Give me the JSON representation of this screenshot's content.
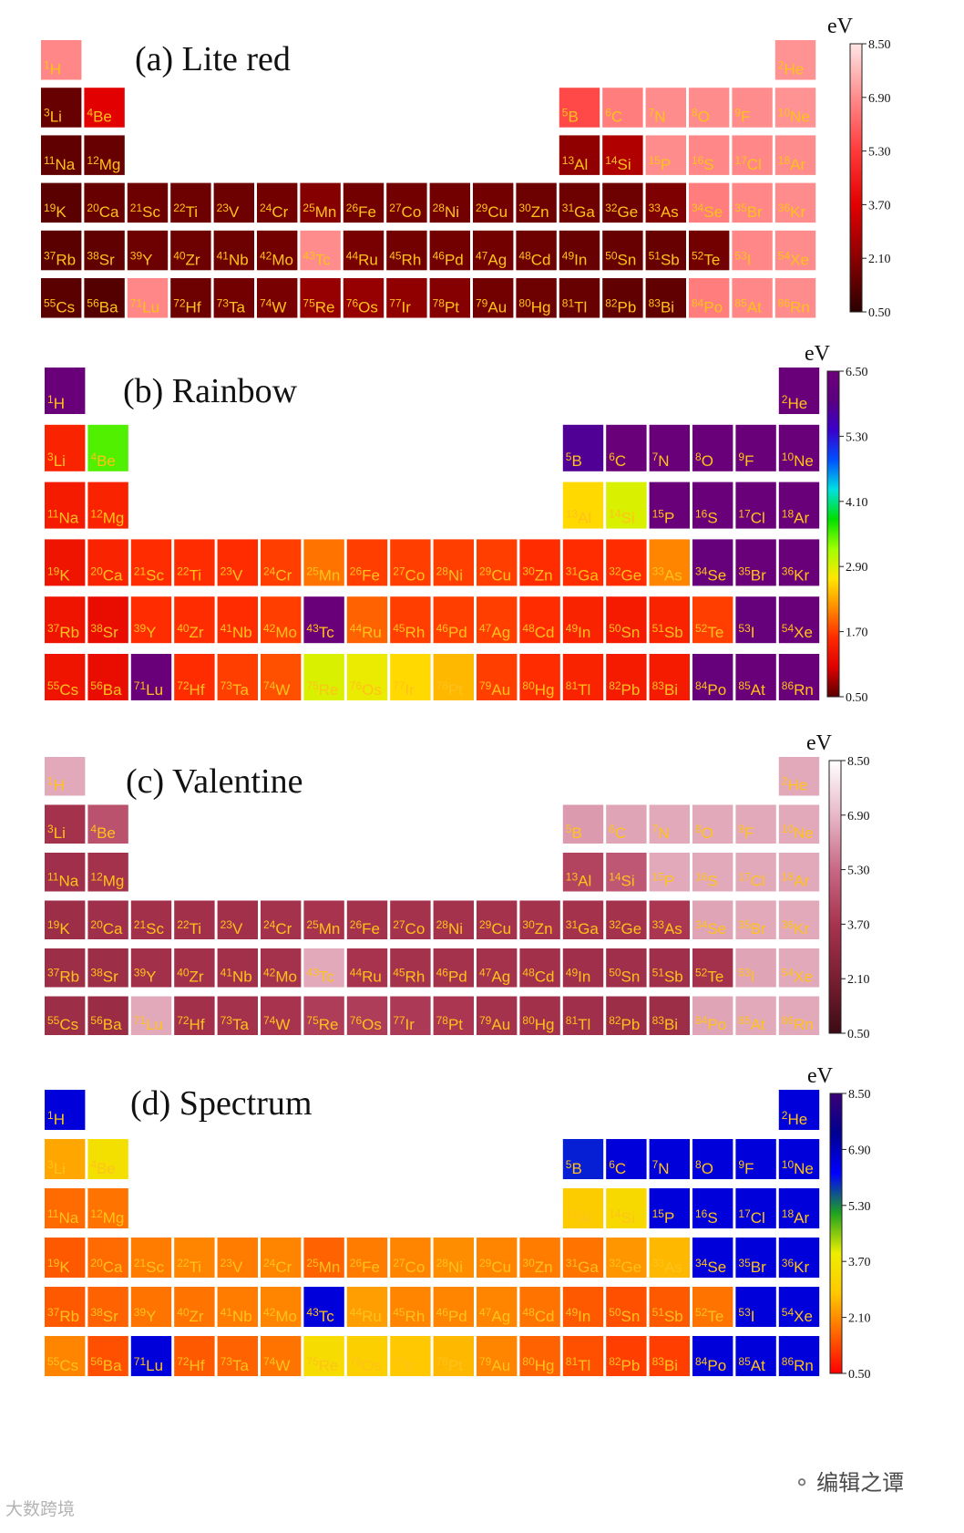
{
  "chart_data": {
    "type": "heatmap",
    "layout": "periodic-table",
    "unit": "eV",
    "elements": [
      {
        "z": 1,
        "sym": "H",
        "g": 1,
        "p": 1
      },
      {
        "z": 2,
        "sym": "He",
        "g": 18,
        "p": 1
      },
      {
        "z": 3,
        "sym": "Li",
        "g": 1,
        "p": 2
      },
      {
        "z": 4,
        "sym": "Be",
        "g": 2,
        "p": 2
      },
      {
        "z": 5,
        "sym": "B",
        "g": 13,
        "p": 2
      },
      {
        "z": 6,
        "sym": "C",
        "g": 14,
        "p": 2
      },
      {
        "z": 7,
        "sym": "N",
        "g": 15,
        "p": 2
      },
      {
        "z": 8,
        "sym": "O",
        "g": 16,
        "p": 2
      },
      {
        "z": 9,
        "sym": "F",
        "g": 17,
        "p": 2
      },
      {
        "z": 10,
        "sym": "Ne",
        "g": 18,
        "p": 2
      },
      {
        "z": 11,
        "sym": "Na",
        "g": 1,
        "p": 3
      },
      {
        "z": 12,
        "sym": "Mg",
        "g": 2,
        "p": 3
      },
      {
        "z": 13,
        "sym": "Al",
        "g": 13,
        "p": 3
      },
      {
        "z": 14,
        "sym": "Si",
        "g": 14,
        "p": 3
      },
      {
        "z": 15,
        "sym": "P",
        "g": 15,
        "p": 3
      },
      {
        "z": 16,
        "sym": "S",
        "g": 16,
        "p": 3
      },
      {
        "z": 17,
        "sym": "Cl",
        "g": 17,
        "p": 3
      },
      {
        "z": 18,
        "sym": "Ar",
        "g": 18,
        "p": 3
      },
      {
        "z": 19,
        "sym": "K",
        "g": 1,
        "p": 4
      },
      {
        "z": 20,
        "sym": "Ca",
        "g": 2,
        "p": 4
      },
      {
        "z": 21,
        "sym": "Sc",
        "g": 3,
        "p": 4
      },
      {
        "z": 22,
        "sym": "Ti",
        "g": 4,
        "p": 4
      },
      {
        "z": 23,
        "sym": "V",
        "g": 5,
        "p": 4
      },
      {
        "z": 24,
        "sym": "Cr",
        "g": 6,
        "p": 4
      },
      {
        "z": 25,
        "sym": "Mn",
        "g": 7,
        "p": 4
      },
      {
        "z": 26,
        "sym": "Fe",
        "g": 8,
        "p": 4
      },
      {
        "z": 27,
        "sym": "Co",
        "g": 9,
        "p": 4
      },
      {
        "z": 28,
        "sym": "Ni",
        "g": 10,
        "p": 4
      },
      {
        "z": 29,
        "sym": "Cu",
        "g": 11,
        "p": 4
      },
      {
        "z": 30,
        "sym": "Zn",
        "g": 12,
        "p": 4
      },
      {
        "z": 31,
        "sym": "Ga",
        "g": 13,
        "p": 4
      },
      {
        "z": 32,
        "sym": "Ge",
        "g": 14,
        "p": 4
      },
      {
        "z": 33,
        "sym": "As",
        "g": 15,
        "p": 4
      },
      {
        "z": 34,
        "sym": "Se",
        "g": 16,
        "p": 4
      },
      {
        "z": 35,
        "sym": "Br",
        "g": 17,
        "p": 4
      },
      {
        "z": 36,
        "sym": "Kr",
        "g": 18,
        "p": 4
      },
      {
        "z": 37,
        "sym": "Rb",
        "g": 1,
        "p": 5
      },
      {
        "z": 38,
        "sym": "Sr",
        "g": 2,
        "p": 5
      },
      {
        "z": 39,
        "sym": "Y",
        "g": 3,
        "p": 5
      },
      {
        "z": 40,
        "sym": "Zr",
        "g": 4,
        "p": 5
      },
      {
        "z": 41,
        "sym": "Nb",
        "g": 5,
        "p": 5
      },
      {
        "z": 42,
        "sym": "Mo",
        "g": 6,
        "p": 5
      },
      {
        "z": 43,
        "sym": "Tc",
        "g": 7,
        "p": 5
      },
      {
        "z": 44,
        "sym": "Ru",
        "g": 8,
        "p": 5
      },
      {
        "z": 45,
        "sym": "Rh",
        "g": 9,
        "p": 5
      },
      {
        "z": 46,
        "sym": "Pd",
        "g": 10,
        "p": 5
      },
      {
        "z": 47,
        "sym": "Ag",
        "g": 11,
        "p": 5
      },
      {
        "z": 48,
        "sym": "Cd",
        "g": 12,
        "p": 5
      },
      {
        "z": 49,
        "sym": "In",
        "g": 13,
        "p": 5
      },
      {
        "z": 50,
        "sym": "Sn",
        "g": 14,
        "p": 5
      },
      {
        "z": 51,
        "sym": "Sb",
        "g": 15,
        "p": 5
      },
      {
        "z": 52,
        "sym": "Te",
        "g": 16,
        "p": 5
      },
      {
        "z": 53,
        "sym": "I",
        "g": 17,
        "p": 5
      },
      {
        "z": 54,
        "sym": "Xe",
        "g": 18,
        "p": 5
      },
      {
        "z": 55,
        "sym": "Cs",
        "g": 1,
        "p": 6
      },
      {
        "z": 56,
        "sym": "Ba",
        "g": 2,
        "p": 6
      },
      {
        "z": 71,
        "sym": "Lu",
        "g": 3,
        "p": 6
      },
      {
        "z": 72,
        "sym": "Hf",
        "g": 4,
        "p": 6
      },
      {
        "z": 73,
        "sym": "Ta",
        "g": 5,
        "p": 6
      },
      {
        "z": 74,
        "sym": "W",
        "g": 6,
        "p": 6
      },
      {
        "z": 75,
        "sym": "Re",
        "g": 7,
        "p": 6
      },
      {
        "z": 76,
        "sym": "Os",
        "g": 8,
        "p": 6
      },
      {
        "z": 77,
        "sym": "Ir",
        "g": 9,
        "p": 6
      },
      {
        "z": 78,
        "sym": "Pt",
        "g": 10,
        "p": 6
      },
      {
        "z": 79,
        "sym": "Au",
        "g": 11,
        "p": 6
      },
      {
        "z": 80,
        "sym": "Hg",
        "g": 12,
        "p": 6
      },
      {
        "z": 81,
        "sym": "Tl",
        "g": 13,
        "p": 6
      },
      {
        "z": 82,
        "sym": "Pb",
        "g": 14,
        "p": 6
      },
      {
        "z": 83,
        "sym": "Bi",
        "g": 15,
        "p": 6
      },
      {
        "z": 84,
        "sym": "Po",
        "g": 16,
        "p": 6
      },
      {
        "z": 85,
        "sym": "At",
        "g": 17,
        "p": 6
      },
      {
        "z": 86,
        "sym": "Rn",
        "g": 18,
        "p": 6
      }
    ],
    "panels": [
      {
        "title": "(a) Lite red",
        "colormap": "lite-red",
        "colorbar": {
          "label": "eV",
          "min": 0.5,
          "max": 8.5,
          "ticks": [
            "8.50",
            "6.90",
            "5.30",
            "3.70",
            "2.10",
            "0.50"
          ]
        },
        "values": {
          "H": 6.8,
          "He": 7.0,
          "Li": 1.5,
          "Be": 3.7,
          "B": 5.6,
          "C": 6.6,
          "N": 6.9,
          "O": 6.9,
          "F": 6.9,
          "Ne": 7.0,
          "Na": 1.4,
          "Mg": 1.5,
          "Al": 2.2,
          "Si": 2.8,
          "P": 6.9,
          "S": 6.8,
          "Cl": 6.8,
          "Ar": 6.9,
          "K": 1.3,
          "Ca": 1.5,
          "Sc": 1.6,
          "Ti": 1.6,
          "V": 1.6,
          "Cr": 1.7,
          "Mn": 2.0,
          "Fe": 1.7,
          "Co": 1.7,
          "Ni": 1.7,
          "Cu": 1.7,
          "Zn": 1.6,
          "Ga": 1.6,
          "Ge": 1.6,
          "As": 1.9,
          "Se": 6.6,
          "Br": 6.8,
          "Kr": 6.9,
          "Rb": 1.3,
          "Sr": 1.4,
          "Y": 1.6,
          "Zr": 1.6,
          "Nb": 1.6,
          "Mo": 1.7,
          "Tc": 6.9,
          "Ru": 1.8,
          "Rh": 1.7,
          "Pd": 1.7,
          "Ag": 1.7,
          "Cd": 1.6,
          "In": 1.5,
          "Sn": 1.5,
          "Sb": 1.5,
          "Te": 1.7,
          "I": 6.8,
          "Xe": 6.9,
          "Cs": 1.3,
          "Ba": 1.2,
          "Lu": 6.8,
          "Hf": 1.6,
          "Ta": 1.7,
          "W": 1.8,
          "Re": 2.3,
          "Os": 2.3,
          "Ir": 2.2,
          "Pt": 2.0,
          "Au": 1.7,
          "Hg": 1.6,
          "Tl": 1.5,
          "Pb": 1.4,
          "Bi": 1.4,
          "Po": 6.6,
          "At": 6.8,
          "Rn": 6.9
        }
      },
      {
        "title": "(b) Rainbow",
        "colormap": "rainbow",
        "colorbar": {
          "label": "eV",
          "min": 0.5,
          "max": 6.5,
          "ticks": [
            "6.50",
            "5.30",
            "4.10",
            "2.90",
            "1.70",
            "0.50"
          ]
        },
        "values": {
          "H": 6.4,
          "He": 6.4,
          "Li": 1.5,
          "Be": 3.5,
          "B": 5.8,
          "C": 6.4,
          "N": 6.4,
          "O": 6.4,
          "F": 6.4,
          "Ne": 6.4,
          "Na": 1.4,
          "Mg": 1.5,
          "Al": 2.6,
          "Si": 2.9,
          "P": 6.4,
          "S": 6.4,
          "Cl": 6.4,
          "Ar": 6.4,
          "K": 1.3,
          "Ca": 1.5,
          "Sc": 1.6,
          "Ti": 1.6,
          "V": 1.6,
          "Cr": 1.7,
          "Mn": 2.0,
          "Fe": 1.7,
          "Co": 1.7,
          "Ni": 1.7,
          "Cu": 1.7,
          "Zn": 1.6,
          "Ga": 1.6,
          "Ge": 1.6,
          "As": 2.1,
          "Se": 6.3,
          "Br": 6.4,
          "Kr": 6.4,
          "Rb": 1.3,
          "Sr": 1.2,
          "Y": 1.6,
          "Zr": 1.6,
          "Nb": 1.6,
          "Mo": 1.7,
          "Tc": 6.4,
          "Ru": 1.9,
          "Rh": 1.7,
          "Pd": 1.7,
          "Ag": 1.7,
          "Cd": 1.6,
          "In": 1.5,
          "Sn": 1.4,
          "Sb": 1.5,
          "Te": 1.7,
          "I": 6.3,
          "Xe": 6.4,
          "Cs": 1.3,
          "Ba": 1.2,
          "Lu": 6.4,
          "Hf": 1.6,
          "Ta": 1.7,
          "W": 1.8,
          "Re": 2.9,
          "Os": 2.8,
          "Ir": 2.6,
          "Pt": 2.4,
          "Au": 1.7,
          "Hg": 1.6,
          "Tl": 1.5,
          "Pb": 1.4,
          "Bi": 1.4,
          "Po": 6.3,
          "At": 6.4,
          "Rn": 6.4
        }
      },
      {
        "title": "(c) Valentine",
        "colormap": "valentine",
        "colorbar": {
          "label": "eV",
          "min": 0.5,
          "max": 8.5,
          "ticks": [
            "8.50",
            "6.90",
            "5.30",
            "3.70",
            "2.10",
            "0.50"
          ]
        },
        "values": {
          "H": 6.6,
          "He": 6.6,
          "Li": 3.6,
          "Be": 4.6,
          "B": 6.3,
          "C": 6.5,
          "N": 6.6,
          "O": 6.6,
          "F": 6.6,
          "Ne": 6.6,
          "Na": 3.4,
          "Mg": 3.6,
          "Al": 4.2,
          "Si": 4.8,
          "P": 6.6,
          "S": 6.6,
          "Cl": 6.6,
          "Ar": 6.6,
          "K": 3.3,
          "Ca": 3.4,
          "Sc": 3.5,
          "Ti": 3.5,
          "V": 3.5,
          "Cr": 3.6,
          "Mn": 3.7,
          "Fe": 3.6,
          "Co": 3.6,
          "Ni": 3.6,
          "Cu": 3.6,
          "Zn": 3.6,
          "Ga": 3.6,
          "Ge": 3.6,
          "As": 3.8,
          "Se": 6.5,
          "Br": 6.6,
          "Kr": 6.6,
          "Rb": 3.3,
          "Sr": 3.3,
          "Y": 3.5,
          "Zr": 3.5,
          "Nb": 3.5,
          "Mo": 3.6,
          "Tc": 6.6,
          "Ru": 3.7,
          "Rh": 3.6,
          "Pd": 3.6,
          "Ag": 3.6,
          "Cd": 3.5,
          "In": 3.4,
          "Sn": 3.4,
          "Sb": 3.4,
          "Te": 3.6,
          "I": 6.5,
          "Xe": 6.6,
          "Cs": 3.3,
          "Ba": 3.2,
          "Lu": 6.6,
          "Hf": 3.5,
          "Ta": 3.6,
          "W": 3.7,
          "Re": 4.0,
          "Os": 4.0,
          "Ir": 3.9,
          "Pt": 3.8,
          "Au": 3.6,
          "Hg": 3.5,
          "Tl": 3.4,
          "Pb": 3.3,
          "Bi": 3.3,
          "Po": 6.5,
          "At": 6.6,
          "Rn": 6.6
        }
      },
      {
        "title": "(d) Spectrum",
        "colormap": "spectrum",
        "colorbar": {
          "label": "eV",
          "min": 0.5,
          "max": 8.5,
          "ticks": [
            "8.50",
            "6.90",
            "5.30",
            "3.70",
            "2.10",
            "0.50"
          ]
        },
        "values": {
          "H": 6.6,
          "He": 6.6,
          "Li": 2.4,
          "Be": 3.5,
          "B": 6.0,
          "C": 6.6,
          "N": 6.6,
          "O": 6.6,
          "F": 6.6,
          "Ne": 6.6,
          "Na": 1.7,
          "Mg": 1.8,
          "Al": 2.9,
          "Si": 3.3,
          "P": 6.6,
          "S": 6.6,
          "Cl": 6.6,
          "Ar": 6.6,
          "K": 1.5,
          "Ca": 1.7,
          "Sc": 1.9,
          "Ti": 2.0,
          "V": 1.9,
          "Cr": 2.0,
          "Mn": 1.6,
          "Fe": 1.9,
          "Co": 2.0,
          "Ni": 2.1,
          "Cu": 2.0,
          "Zn": 1.9,
          "Ga": 1.8,
          "Ge": 2.2,
          "As": 2.6,
          "Se": 6.6,
          "Br": 6.6,
          "Kr": 6.6,
          "Rb": 1.5,
          "Sr": 1.6,
          "Y": 1.8,
          "Zr": 1.8,
          "Nb": 1.9,
          "Mo": 2.0,
          "Tc": 6.6,
          "Ru": 2.3,
          "Rh": 2.0,
          "Pd": 2.0,
          "Ag": 2.0,
          "Cd": 1.8,
          "In": 1.5,
          "Sn": 1.4,
          "Sb": 1.5,
          "Te": 1.8,
          "I": 6.6,
          "Xe": 6.6,
          "Cs": 2.0,
          "Ba": 1.4,
          "Lu": 6.6,
          "Hf": 1.5,
          "Ta": 1.6,
          "W": 1.8,
          "Re": 3.4,
          "Os": 3.0,
          "Ir": 2.8,
          "Pt": 2.6,
          "Au": 2.0,
          "Hg": 1.6,
          "Tl": 1.4,
          "Pb": 1.2,
          "Bi": 1.2,
          "Po": 6.6,
          "At": 6.6,
          "Rn": 6.6
        }
      }
    ]
  },
  "colors": {
    "lite-red": [
      "#2a0000",
      "#8b0000",
      "#e20000",
      "#ff3a3a",
      "#ff8c8c",
      "#ffe6e6"
    ],
    "rainbow": [
      "#5a0000",
      "#e00000",
      "#ff2a00",
      "#ff8c00",
      "#ffe600",
      "#a0ff00",
      "#00e000",
      "#00e0e0",
      "#0050ff",
      "#3a00cc",
      "#5a0080",
      "#6e0078"
    ],
    "valentine": [
      "#3c0a14",
      "#7a1e32",
      "#a8334f",
      "#c86885",
      "#e8b8c8",
      "#ffffff"
    ],
    "spectrum": [
      "#ff0000",
      "#ff6600",
      "#ffc800",
      "#eeee00",
      "#1fa31f",
      "#0000ff",
      "#000090",
      "#3a0077"
    ],
    "cell_text": "#ffc21a"
  },
  "watermarks": {
    "left": "大数跨境",
    "right": "编辑之谭"
  }
}
